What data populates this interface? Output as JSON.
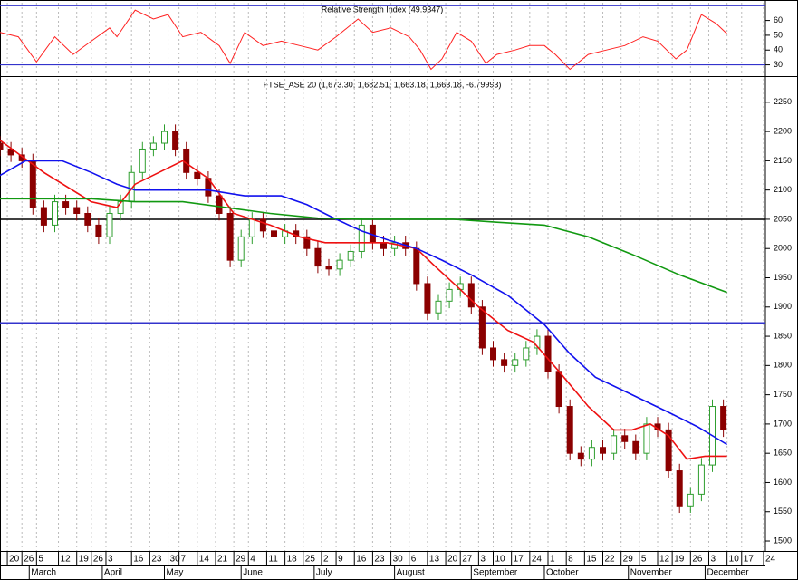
{
  "chart_data": [
    {
      "type": "line",
      "title": "Relative Strength Index (49.9347)",
      "x": [
        0,
        5,
        10,
        15,
        20,
        25,
        30,
        32,
        37,
        42,
        46,
        50,
        55,
        60,
        63,
        67,
        72,
        77,
        82,
        87,
        92,
        98,
        102,
        107,
        112,
        115,
        118,
        121,
        125,
        129,
        133,
        136,
        141,
        145,
        149,
        152,
        156,
        161,
        166,
        171,
        176,
        180,
        185,
        188,
        192,
        196,
        199
      ],
      "series": [
        {
          "color": "#ff2020",
          "values": [
            52,
            49,
            32,
            49,
            37,
            46,
            55,
            49,
            67,
            61,
            64,
            49,
            52,
            43,
            31,
            52,
            43,
            46,
            43,
            40,
            49,
            61,
            52,
            55,
            49,
            40,
            27,
            34,
            52,
            46,
            31,
            37,
            40,
            43,
            43,
            37,
            27,
            37,
            40,
            43,
            49,
            46,
            34,
            40,
            64,
            58,
            51
          ]
        }
      ],
      "levels": [
        70,
        30
      ],
      "level_color": "#3333cc",
      "ylim": [
        23,
        72
      ],
      "yticks": [
        30,
        40,
        50,
        60
      ]
    },
    {
      "type": "candlestick",
      "title": "FTSE_ASE 20 (1,673.30, 1,682.51, 1,663.18, 1,663.18, -6.79993)",
      "up_color": "#2e9e2e",
      "down_color": "#8b0000",
      "candles": [
        [
          0,
          2180,
          2192,
          2158,
          2170
        ],
        [
          3,
          2170,
          2182,
          2148,
          2160
        ],
        [
          6,
          2160,
          2172,
          2138,
          2150
        ],
        [
          9,
          2150,
          2162,
          2058,
          2070
        ],
        [
          12,
          2070,
          2082,
          2028,
          2040
        ],
        [
          15,
          2040,
          2092,
          2028,
          2080
        ],
        [
          18,
          2080,
          2092,
          2058,
          2070
        ],
        [
          21,
          2070,
          2082,
          2048,
          2060
        ],
        [
          24,
          2060,
          2072,
          2028,
          2040
        ],
        [
          27,
          2040,
          2052,
          2008,
          2020
        ],
        [
          30,
          2020,
          2072,
          2008,
          2060
        ],
        [
          33,
          2060,
          2092,
          2048,
          2080
        ],
        [
          36,
          2080,
          2142,
          2068,
          2130
        ],
        [
          39,
          2130,
          2182,
          2118,
          2170
        ],
        [
          42,
          2170,
          2192,
          2158,
          2180
        ],
        [
          45,
          2180,
          2212,
          2168,
          2200
        ],
        [
          48,
          2200,
          2212,
          2158,
          2170
        ],
        [
          51,
          2170,
          2182,
          2118,
          2130
        ],
        [
          54,
          2130,
          2142,
          2108,
          2120
        ],
        [
          57,
          2120,
          2132,
          2078,
          2090
        ],
        [
          60,
          2090,
          2102,
          2048,
          2060
        ],
        [
          63,
          2060,
          2072,
          1968,
          1980
        ],
        [
          66,
          1980,
          2032,
          1968,
          2020
        ],
        [
          69,
          2020,
          2062,
          2008,
          2050
        ],
        [
          72,
          2050,
          2062,
          2018,
          2030
        ],
        [
          75,
          2030,
          2042,
          2008,
          2020
        ],
        [
          78,
          2020,
          2042,
          2008,
          2030
        ],
        [
          81,
          2030,
          2042,
          2008,
          2020
        ],
        [
          84,
          2020,
          2032,
          1988,
          2000
        ],
        [
          87,
          2000,
          2012,
          1958,
          1970
        ],
        [
          90,
          1970,
          1982,
          1953,
          1965
        ],
        [
          93,
          1965,
          1992,
          1953,
          1980
        ],
        [
          96,
          1980,
          2007,
          1968,
          1995
        ],
        [
          99,
          1995,
          2052,
          1983,
          2040
        ],
        [
          102,
          2040,
          2052,
          1998,
          2010
        ],
        [
          105,
          2010,
          2022,
          1988,
          2000
        ],
        [
          108,
          2000,
          2022,
          1988,
          2010
        ],
        [
          111,
          2010,
          2022,
          1988,
          2000
        ],
        [
          114,
          2000,
          2012,
          1928,
          1940
        ],
        [
          117,
          1940,
          1952,
          1878,
          1890
        ],
        [
          120,
          1890,
          1922,
          1878,
          1910
        ],
        [
          123,
          1910,
          1942,
          1898,
          1930
        ],
        [
          126,
          1930,
          1952,
          1918,
          1940
        ],
        [
          129,
          1940,
          1952,
          1888,
          1900
        ],
        [
          132,
          1900,
          1912,
          1818,
          1830
        ],
        [
          135,
          1830,
          1842,
          1798,
          1810
        ],
        [
          138,
          1810,
          1822,
          1788,
          1800
        ],
        [
          141,
          1800,
          1822,
          1788,
          1810
        ],
        [
          144,
          1810,
          1842,
          1798,
          1830
        ],
        [
          147,
          1830,
          1862,
          1818,
          1850
        ],
        [
          150,
          1850,
          1862,
          1778,
          1790
        ],
        [
          153,
          1790,
          1802,
          1718,
          1730
        ],
        [
          156,
          1730,
          1742,
          1638,
          1650
        ],
        [
          159,
          1650,
          1662,
          1628,
          1640
        ],
        [
          162,
          1640,
          1672,
          1628,
          1660
        ],
        [
          165,
          1660,
          1672,
          1638,
          1650
        ],
        [
          168,
          1650,
          1692,
          1638,
          1680
        ],
        [
          171,
          1680,
          1692,
          1658,
          1670
        ],
        [
          174,
          1670,
          1682,
          1638,
          1650
        ],
        [
          177,
          1650,
          1712,
          1638,
          1700
        ],
        [
          180,
          1700,
          1712,
          1678,
          1690
        ],
        [
          183,
          1690,
          1702,
          1608,
          1620
        ],
        [
          186,
          1620,
          1632,
          1548,
          1560
        ],
        [
          189,
          1560,
          1592,
          1548,
          1580
        ],
        [
          192,
          1580,
          1642,
          1568,
          1630
        ],
        [
          195,
          1630,
          1742,
          1618,
          1730
        ],
        [
          198,
          1730,
          1742,
          1678,
          1690
        ]
      ],
      "series": [
        {
          "color": "#ee1111",
          "x": [
            0,
            12,
            25,
            32,
            37,
            50,
            57,
            64,
            74,
            82,
            89,
            99,
            106,
            114,
            119,
            126,
            131,
            139,
            146,
            153,
            161,
            168,
            173,
            178,
            183,
            188,
            193,
            199
          ],
          "values": [
            2185,
            2130,
            2080,
            2070,
            2110,
            2150,
            2120,
            2060,
            2040,
            2020,
            2010,
            2010,
            2010,
            2000,
            1970,
            1930,
            1900,
            1860,
            1840,
            1790,
            1730,
            1690,
            1690,
            1700,
            1680,
            1640,
            1645,
            1645
          ]
        },
        {
          "color": "#1111ee",
          "x": [
            0,
            7,
            17,
            25,
            32,
            37,
            47,
            57,
            67,
            77,
            84,
            92,
            99,
            106,
            114,
            121,
            129,
            139,
            149,
            156,
            163,
            173,
            183,
            191,
            199
          ],
          "values": [
            2125,
            2150,
            2150,
            2130,
            2110,
            2100,
            2100,
            2100,
            2090,
            2090,
            2075,
            2050,
            2030,
            2015,
            2000,
            1980,
            1955,
            1920,
            1870,
            1820,
            1780,
            1750,
            1720,
            1695,
            1665
          ]
        },
        {
          "color": "#119911",
          "x": [
            0,
            12,
            25,
            37,
            50,
            62,
            74,
            87,
            99,
            111,
            124,
            136,
            149,
            161,
            173,
            186,
            199
          ],
          "values": [
            2085,
            2085,
            2085,
            2080,
            2080,
            2070,
            2060,
            2052,
            2050,
            2050,
            2050,
            2045,
            2040,
            2020,
            1990,
            1955,
            1925
          ]
        }
      ],
      "hlines": [
        {
          "value": 2050,
          "color": "#000000"
        },
        {
          "value": 1873,
          "color": "#3333cc"
        }
      ],
      "ylim": [
        1483,
        2290
      ],
      "yticks": [
        1500,
        1550,
        1600,
        1650,
        1700,
        1750,
        1800,
        1850,
        1900,
        1950,
        2000,
        2050,
        2100,
        2150,
        2200,
        2250
      ],
      "xlim": [
        0,
        209.5
      ],
      "xticks": [
        {
          "value": 2,
          "label": "20"
        },
        {
          "value": 6,
          "label": "26"
        },
        {
          "value": 10,
          "label": "5"
        },
        {
          "value": 16,
          "label": "12"
        },
        {
          "value": 21,
          "label": "19"
        },
        {
          "value": 25,
          "label": "26"
        },
        {
          "value": 29,
          "label": "3"
        },
        {
          "value": 36,
          "label": "16"
        },
        {
          "value": 41,
          "label": "23"
        },
        {
          "value": 46,
          "label": "30"
        },
        {
          "value": 49,
          "label": "7"
        },
        {
          "value": 54,
          "label": "14"
        },
        {
          "value": 59,
          "label": "21"
        },
        {
          "value": 64,
          "label": "29"
        },
        {
          "value": 68,
          "label": "4"
        },
        {
          "value": 73,
          "label": "11"
        },
        {
          "value": 78,
          "label": "18"
        },
        {
          "value": 83,
          "label": "25"
        },
        {
          "value": 88,
          "label": "2"
        },
        {
          "value": 92,
          "label": "9"
        },
        {
          "value": 97,
          "label": "16"
        },
        {
          "value": 102,
          "label": "23"
        },
        {
          "value": 107,
          "label": "30"
        },
        {
          "value": 112,
          "label": "6"
        },
        {
          "value": 117,
          "label": "13"
        },
        {
          "value": 122,
          "label": "20"
        },
        {
          "value": 126,
          "label": "27"
        },
        {
          "value": 131,
          "label": "3"
        },
        {
          "value": 135,
          "label": "10"
        },
        {
          "value": 140,
          "label": "17"
        },
        {
          "value": 145,
          "label": "24"
        },
        {
          "value": 150,
          "label": "1"
        },
        {
          "value": 155,
          "label": "8"
        },
        {
          "value": 160,
          "label": "15"
        },
        {
          "value": 165,
          "label": "22"
        },
        {
          "value": 170,
          "label": "29"
        },
        {
          "value": 175,
          "label": "5"
        },
        {
          "value": 180,
          "label": "12"
        },
        {
          "value": 184,
          "label": "19"
        },
        {
          "value": 189,
          "label": "26"
        },
        {
          "value": 194,
          "label": "3"
        },
        {
          "value": 199,
          "label": "10"
        },
        {
          "value": 203,
          "label": "17"
        },
        {
          "value": 209,
          "label": "24"
        }
      ],
      "month_ticks": [
        {
          "value": 8,
          "label": "March"
        },
        {
          "value": 28,
          "label": "April"
        },
        {
          "value": 45,
          "label": "May"
        },
        {
          "value": 66,
          "label": "June"
        },
        {
          "value": 86,
          "label": "July"
        },
        {
          "value": 108,
          "label": "August"
        },
        {
          "value": 129,
          "label": "September"
        },
        {
          "value": 149,
          "label": "October"
        },
        {
          "value": 172,
          "label": "November"
        },
        {
          "value": 193,
          "label": "December"
        }
      ]
    }
  ]
}
